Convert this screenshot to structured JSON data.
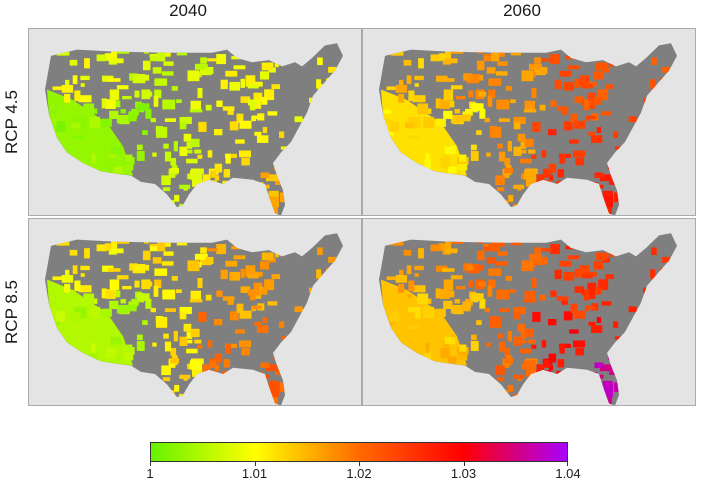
{
  "columns": [
    "2040",
    "2060"
  ],
  "rows": [
    "RCP 4.5",
    "RCP 8.5"
  ],
  "colors": {
    "no_data": "#7f7f7f",
    "panel_bg": "#e4e4e4",
    "scale": [
      "#66f200",
      "#ffff00",
      "#ff6a00",
      "#ff0000",
      "#aa00ff"
    ]
  },
  "legend": {
    "ticks": [
      "1",
      "1.01",
      "1.02",
      "1.03",
      "1.04"
    ],
    "tick_values": [
      1,
      1.01,
      1.02,
      1.03,
      1.04
    ],
    "min": 1,
    "max": 1.04
  },
  "panels": [
    {
      "row": "RCP 4.5",
      "column": "2040",
      "west": 1.009,
      "southwest": 1.003,
      "central": 1.007,
      "east": 1.01,
      "southeast": 1.012,
      "florida": 1.015
    },
    {
      "row": "RCP 4.5",
      "column": "2060",
      "west": 1.014,
      "southwest": 1.012,
      "central": 1.017,
      "east": 1.022,
      "southeast": 1.025,
      "florida": 1.027
    },
    {
      "row": "RCP 8.5",
      "column": "2040",
      "west": 1.011,
      "southwest": 1.005,
      "central": 1.012,
      "east": 1.016,
      "southeast": 1.019,
      "florida": 1.021
    },
    {
      "row": "RCP 8.5",
      "column": "2060",
      "west": 1.016,
      "southwest": 1.014,
      "central": 1.02,
      "east": 1.025,
      "southeast": 1.029,
      "florida": 1.036
    }
  ]
}
